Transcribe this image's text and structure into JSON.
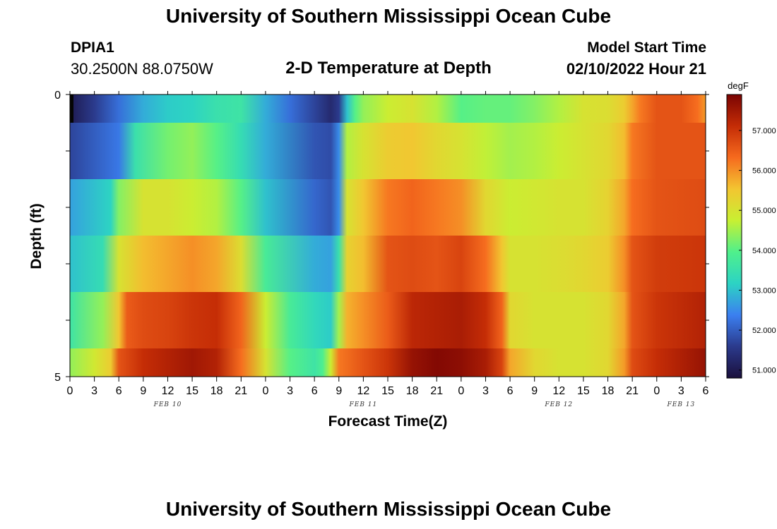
{
  "header": {
    "title": "University of Southern Mississippi Ocean Cube",
    "station": "DPIA1",
    "coords": "30.2500N  88.0750W",
    "plot_title": "2-D Temperature at Depth",
    "model_start_label": "Model Start Time",
    "model_start_value": "02/10/2022 Hour 21"
  },
  "footer": {
    "title": "University of Southern Mississippi Ocean Cube"
  },
  "colors": {
    "colormap": [
      "#1a0f3c",
      "#2b3a8c",
      "#3b7ff0",
      "#2cd3c4",
      "#4ff08c",
      "#c8f032",
      "#f3c531",
      "#f66a1e",
      "#c42c06",
      "#7a0403"
    ]
  },
  "chart_data": {
    "type": "heatmap",
    "title": "2-D Temperature at Depth",
    "xlabel": "Forecast Time(Z)",
    "ylabel": "Depth (ft)",
    "y_tick_labels": [
      "0",
      "5"
    ],
    "x_tick_labels": [
      "0",
      "3",
      "6",
      "9",
      "12",
      "15",
      "18",
      "21",
      "0",
      "3",
      "6",
      "9",
      "12",
      "15",
      "18",
      "21",
      "0",
      "3",
      "6",
      "9",
      "12",
      "15",
      "18",
      "21",
      "0",
      "3",
      "6"
    ],
    "date_labels": [
      {
        "label": "FEB 10",
        "hour": 12
      },
      {
        "label": "FEB 11",
        "hour": 36
      },
      {
        "label": "FEB 12",
        "hour": 60
      },
      {
        "label": "FEB 13",
        "hour": 75
      }
    ],
    "x_range_hours": [
      0,
      78
    ],
    "depth_rows": [
      "0-1",
      "1-2",
      "2-3",
      "3-4",
      "4-5"
    ],
    "colorbar": {
      "unit": "degF",
      "range": [
        50.8,
        57.9
      ],
      "ticks": [
        "51.000",
        "52.000",
        "53.000",
        "54.000",
        "55.000",
        "56.000",
        "57.000"
      ]
    },
    "rows_keyframes": [
      [
        [
          0,
          51.0
        ],
        [
          3,
          51.6
        ],
        [
          6,
          52.2
        ],
        [
          9,
          52.8
        ],
        [
          12,
          53.1
        ],
        [
          15,
          53.2
        ],
        [
          18,
          53.5
        ],
        [
          21,
          53.6
        ],
        [
          24,
          52.8
        ],
        [
          27,
          52.2
        ],
        [
          30,
          51.7
        ],
        [
          32,
          51.3
        ],
        [
          33,
          51.6
        ],
        [
          34,
          53.0
        ],
        [
          35,
          54.0
        ],
        [
          36,
          54.4
        ],
        [
          39,
          54.8
        ],
        [
          42,
          55.0
        ],
        [
          45,
          54.6
        ],
        [
          48,
          54.0
        ],
        [
          51,
          54.1
        ],
        [
          54,
          54.1
        ],
        [
          57,
          54.3
        ],
        [
          60,
          54.6
        ],
        [
          63,
          55.0
        ],
        [
          66,
          55.1
        ],
        [
          68,
          55.4
        ],
        [
          69,
          55.8
        ],
        [
          70,
          56.2
        ],
        [
          72,
          56.6
        ],
        [
          75,
          56.6
        ],
        [
          77,
          56.3
        ],
        [
          78,
          55.9
        ]
      ],
      [
        [
          0,
          51.7
        ],
        [
          6,
          52.3
        ],
        [
          8,
          53.5
        ],
        [
          12,
          54.2
        ],
        [
          15,
          54.4
        ],
        [
          18,
          54.0
        ],
        [
          21,
          53.4
        ],
        [
          24,
          52.8
        ],
        [
          30,
          51.9
        ],
        [
          32,
          51.8
        ],
        [
          33,
          52.5
        ],
        [
          34,
          54.6
        ],
        [
          36,
          55.0
        ],
        [
          39,
          55.4
        ],
        [
          42,
          55.5
        ],
        [
          45,
          55.2
        ],
        [
          48,
          55.0
        ],
        [
          51,
          54.7
        ],
        [
          54,
          54.5
        ],
        [
          57,
          54.6
        ],
        [
          60,
          54.8
        ],
        [
          63,
          55.0
        ],
        [
          66,
          55.2
        ],
        [
          68,
          55.6
        ],
        [
          69,
          56.2
        ],
        [
          72,
          56.6
        ],
        [
          78,
          56.6
        ]
      ],
      [
        [
          0,
          52.7
        ],
        [
          5,
          53.2
        ],
        [
          6,
          54.3
        ],
        [
          9,
          55.0
        ],
        [
          12,
          55.0
        ],
        [
          15,
          54.8
        ],
        [
          18,
          54.6
        ],
        [
          21,
          54.0
        ],
        [
          24,
          53.0
        ],
        [
          30,
          52.1
        ],
        [
          32,
          51.9
        ],
        [
          33,
          52.5
        ],
        [
          34,
          55.0
        ],
        [
          36,
          55.5
        ],
        [
          39,
          56.2
        ],
        [
          42,
          56.4
        ],
        [
          45,
          56.2
        ],
        [
          48,
          56.0
        ],
        [
          51,
          55.2
        ],
        [
          54,
          54.8
        ],
        [
          57,
          54.9
        ],
        [
          60,
          55.0
        ],
        [
          63,
          55.0
        ],
        [
          66,
          55.3
        ],
        [
          68,
          55.8
        ],
        [
          69,
          56.3
        ],
        [
          72,
          56.6
        ],
        [
          78,
          56.7
        ]
      ],
      [
        [
          0,
          53.0
        ],
        [
          4,
          53.4
        ],
        [
          6,
          55.0
        ],
        [
          9,
          55.6
        ],
        [
          12,
          55.8
        ],
        [
          15,
          56.0
        ],
        [
          18,
          55.8
        ],
        [
          21,
          55.1
        ],
        [
          24,
          53.8
        ],
        [
          30,
          52.8
        ],
        [
          32,
          52.7
        ],
        [
          33,
          53.5
        ],
        [
          34,
          55.3
        ],
        [
          36,
          55.6
        ],
        [
          39,
          56.6
        ],
        [
          42,
          56.7
        ],
        [
          45,
          56.6
        ],
        [
          48,
          56.8
        ],
        [
          51,
          56.3
        ],
        [
          53,
          55.5
        ],
        [
          54,
          55.0
        ],
        [
          57,
          55.0
        ],
        [
          60,
          55.1
        ],
        [
          63,
          55.2
        ],
        [
          66,
          55.4
        ],
        [
          68,
          56.0
        ],
        [
          69,
          56.6
        ],
        [
          72,
          56.9
        ],
        [
          78,
          57.0
        ]
      ],
      [
        [
          0,
          53.6
        ],
        [
          4,
          54.4
        ],
        [
          6,
          55.5
        ],
        [
          7,
          56.5
        ],
        [
          9,
          56.7
        ],
        [
          12,
          56.8
        ],
        [
          15,
          57.0
        ],
        [
          18,
          57.1
        ],
        [
          21,
          56.4
        ],
        [
          24,
          54.8
        ],
        [
          27,
          53.8
        ],
        [
          30,
          53.3
        ],
        [
          32,
          53.1
        ],
        [
          33,
          54.5
        ],
        [
          34,
          55.7
        ],
        [
          36,
          56.0
        ],
        [
          39,
          56.5
        ],
        [
          42,
          57.2
        ],
        [
          45,
          57.3
        ],
        [
          48,
          57.4
        ],
        [
          51,
          57.1
        ],
        [
          53,
          56.4
        ],
        [
          54,
          55.2
        ],
        [
          57,
          55.0
        ],
        [
          60,
          55.0
        ],
        [
          63,
          55.0
        ],
        [
          66,
          55.2
        ],
        [
          68,
          55.8
        ],
        [
          69,
          56.6
        ],
        [
          72,
          57.0
        ],
        [
          78,
          57.3
        ]
      ],
      [
        [
          0,
          54.4
        ],
        [
          3,
          54.9
        ],
        [
          5,
          55.4
        ],
        [
          6,
          56.6
        ],
        [
          9,
          57.1
        ],
        [
          12,
          57.3
        ],
        [
          15,
          57.5
        ],
        [
          18,
          57.3
        ],
        [
          21,
          56.3
        ],
        [
          24,
          55.0
        ],
        [
          27,
          54.0
        ],
        [
          30,
          53.6
        ],
        [
          31,
          53.9
        ],
        [
          32,
          54.8
        ],
        [
          33,
          56.2
        ],
        [
          36,
          56.6
        ],
        [
          39,
          57.0
        ],
        [
          42,
          57.6
        ],
        [
          45,
          57.8
        ],
        [
          48,
          57.7
        ],
        [
          51,
          57.4
        ],
        [
          53,
          56.8
        ],
        [
          54,
          55.8
        ],
        [
          57,
          55.2
        ],
        [
          60,
          55.0
        ],
        [
          63,
          55.0
        ],
        [
          66,
          55.2
        ],
        [
          68,
          55.9
        ],
        [
          69,
          56.7
        ],
        [
          72,
          57.1
        ],
        [
          78,
          57.6
        ]
      ]
    ]
  }
}
